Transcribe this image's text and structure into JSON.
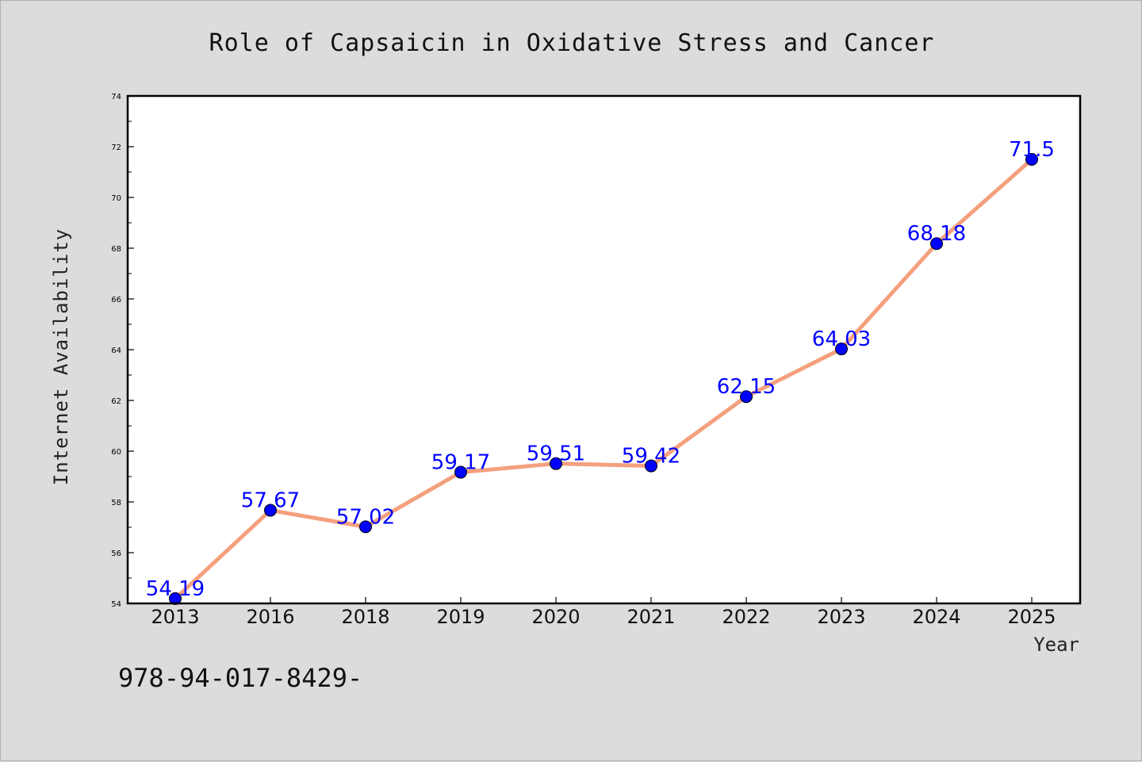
{
  "chart_data": {
    "type": "line",
    "title": "Role of Capsaicin in Oxidative Stress and Cancer",
    "xlabel": "Year",
    "ylabel": "Internet Availability",
    "categories": [
      "2013",
      "2016",
      "2018",
      "2019",
      "2020",
      "2021",
      "2022",
      "2023",
      "2024",
      "2025"
    ],
    "values": [
      54.19,
      57.67,
      57.02,
      59.17,
      59.51,
      59.42,
      62.15,
      64.03,
      68.18,
      71.5
    ],
    "data_labels": [
      "54.19",
      "57.67",
      "57.02",
      "59.17",
      "59.51",
      "59.42",
      "62.15",
      "64.03",
      "68.18",
      "71.5"
    ],
    "ylim": [
      54,
      74
    ],
    "yticks": [
      "54",
      "56",
      "58",
      "60",
      "62",
      "64",
      "66",
      "68",
      "70",
      "72",
      "74"
    ],
    "grid": false,
    "line_color": "#f4a07e",
    "marker_color": "#0000ff",
    "label_color": "#0000ff"
  },
  "footer": {
    "text": "978-94-017-8429-"
  }
}
